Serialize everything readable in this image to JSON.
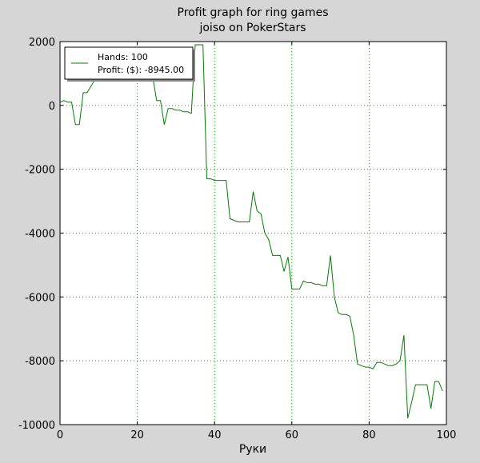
{
  "chart_data": {
    "type": "line",
    "title": [
      "Profit graph for ring games",
      "joiso on PokerStars"
    ],
    "xlabel": "Руки",
    "ylabel": "",
    "xlim": [
      0,
      100
    ],
    "ylim": [
      -10000,
      2000
    ],
    "xticks": [
      0,
      20,
      40,
      60,
      80,
      100
    ],
    "yticks": [
      -10000,
      -8000,
      -6000,
      -4000,
      -2000,
      0,
      2000
    ],
    "grid": true,
    "legend": {
      "placement": "top-left",
      "lines": [
        "Hands: 100",
        "Profit: ($): -8945.00"
      ]
    },
    "colors": {
      "line": "#008000",
      "grid": "#00aa00",
      "background": "#d6d6d6",
      "plot": "#ffffff"
    },
    "series": [
      {
        "x": [
          0,
          1,
          2,
          3,
          4,
          5,
          6,
          7,
          8,
          9,
          10,
          11,
          12,
          13,
          14,
          15,
          16,
          17,
          18,
          19,
          20,
          21,
          22,
          23,
          24,
          25,
          26,
          27,
          28,
          29,
          30,
          31,
          32,
          33,
          34,
          35,
          36,
          37,
          38,
          39,
          40,
          41,
          42,
          43,
          44,
          45,
          46,
          47,
          48,
          49,
          50,
          51,
          52,
          53,
          54,
          55,
          56,
          57,
          58,
          59,
          60,
          61,
          62,
          63,
          64,
          65,
          66,
          67,
          68,
          69,
          70,
          71,
          72,
          73,
          74,
          75,
          76,
          77,
          78,
          79,
          80,
          81,
          82,
          83,
          84,
          85,
          86,
          87,
          88,
          89,
          90,
          91,
          92,
          93,
          94,
          95,
          96,
          97,
          98,
          99
        ],
        "y": [
          100,
          150,
          100,
          100,
          -600,
          -600,
          400,
          400,
          600,
          800,
          900,
          950,
          1000,
          1000,
          1100,
          1100,
          1200,
          1200,
          1200,
          1200,
          1200,
          1200,
          1200,
          1200,
          900,
          150,
          150,
          -600,
          -100,
          -100,
          -150,
          -150,
          -200,
          -200,
          -250,
          1900,
          1900,
          1900,
          -2300,
          -2300,
          -2350,
          -2350,
          -2350,
          -2350,
          -3550,
          -3600,
          -3650,
          -3650,
          -3650,
          -3650,
          -2700,
          -3300,
          -3400,
          -4000,
          -4200,
          -4700,
          -4700,
          -4700,
          -5200,
          -4750,
          -5750,
          -5750,
          -5750,
          -5500,
          -5550,
          -5550,
          -5600,
          -5600,
          -5650,
          -5650,
          -4700,
          -6000,
          -6500,
          -6550,
          -6550,
          -6600,
          -7200,
          -8100,
          -8150,
          -8200,
          -8200,
          -8250,
          -8050,
          -8050,
          -8100,
          -8150,
          -8150,
          -8100,
          -8000,
          -7200,
          -9800,
          -9300,
          -8750,
          -8750,
          -8750,
          -8750,
          -9500,
          -8650,
          -8650,
          -8945
        ]
      }
    ]
  }
}
